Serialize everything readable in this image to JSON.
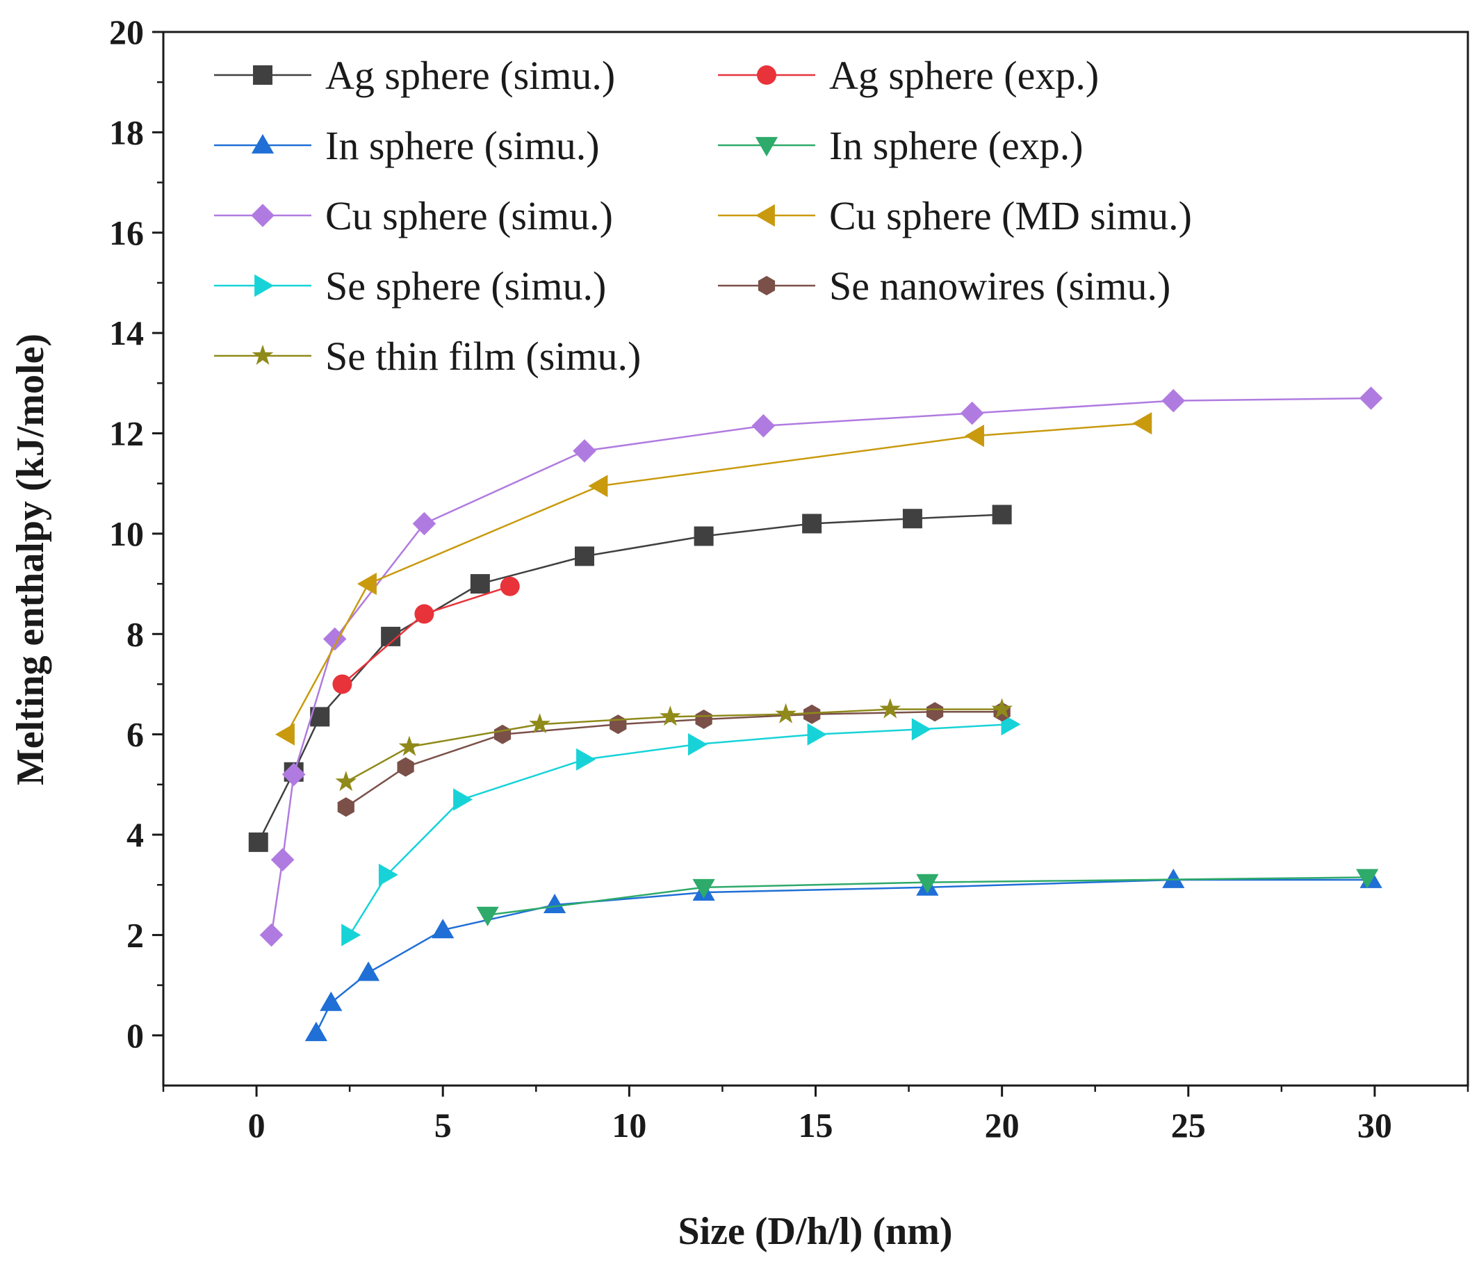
{
  "chart_data": {
    "type": "line",
    "title": "",
    "xlabel": "Size (D/h/l) (nm)",
    "ylabel": "Melting enthalpy (kJ/mole)",
    "xlim": [
      -2.5,
      32.5
    ],
    "ylim": [
      -1,
      20
    ],
    "xticks": [
      0,
      5,
      10,
      15,
      20,
      25,
      30
    ],
    "yticks": [
      0,
      2,
      4,
      6,
      8,
      10,
      12,
      14,
      16,
      18,
      20
    ],
    "legend_position": "top-left",
    "series": [
      {
        "name": "Ag sphere (simu.)",
        "color": "#404040",
        "marker": "square",
        "x": [
          0.05,
          1.0,
          1.7,
          3.6,
          6.0,
          8.8,
          12.0,
          14.9,
          17.6,
          20.0
        ],
        "y": [
          3.85,
          5.25,
          6.35,
          7.95,
          9.0,
          9.55,
          9.95,
          10.2,
          10.3,
          10.38
        ]
      },
      {
        "name": "Ag sphere (exp.)",
        "color": "#e8333a",
        "marker": "circle",
        "x": [
          2.3,
          4.5,
          6.8
        ],
        "y": [
          7.0,
          8.4,
          8.95
        ]
      },
      {
        "name": "In sphere (simu.)",
        "color": "#1f6fd6",
        "marker": "triangle-up",
        "x": [
          1.6,
          2.0,
          3.0,
          5.0,
          8.0,
          12.0,
          18.0,
          24.6,
          29.9
        ],
        "y": [
          0.05,
          0.65,
          1.25,
          2.1,
          2.6,
          2.85,
          2.95,
          3.1,
          3.1
        ]
      },
      {
        "name": "In sphere (exp.)",
        "color": "#2eaa6a",
        "marker": "triangle-down",
        "x": [
          6.2,
          12.0,
          18.0,
          29.8
        ],
        "y": [
          2.4,
          2.95,
          3.05,
          3.15
        ]
      },
      {
        "name": "Cu sphere (simu.)",
        "color": "#b07be0",
        "marker": "diamond",
        "x": [
          0.4,
          0.7,
          1.0,
          2.1,
          4.5,
          8.8,
          13.6,
          19.2,
          24.6,
          29.9
        ],
        "y": [
          2.0,
          3.5,
          5.2,
          7.9,
          10.2,
          11.65,
          12.15,
          12.4,
          12.65,
          12.7
        ]
      },
      {
        "name": "Cu sphere (MD simu.)",
        "color": "#c99a0e",
        "marker": "triangle-left",
        "x": [
          0.8,
          3.0,
          9.2,
          19.3,
          23.8
        ],
        "y": [
          6.0,
          9.0,
          10.95,
          11.95,
          12.2
        ]
      },
      {
        "name": "Se sphere (simu.)",
        "color": "#17d3d8",
        "marker": "triangle-right",
        "x": [
          2.5,
          3.5,
          5.5,
          8.8,
          11.8,
          15.0,
          17.8,
          20.2
        ],
        "y": [
          2.0,
          3.2,
          4.7,
          5.5,
          5.8,
          6.0,
          6.1,
          6.2
        ]
      },
      {
        "name": "Se nanowires (simu.)",
        "color": "#7a5048",
        "marker": "hexagon",
        "x": [
          2.4,
          4.0,
          6.6,
          9.7,
          12.0,
          14.9,
          18.2,
          20.0
        ],
        "y": [
          4.55,
          5.35,
          6.0,
          6.2,
          6.3,
          6.4,
          6.45,
          6.45
        ]
      },
      {
        "name": "Se thin film (simu.)",
        "color": "#8f8a1a",
        "marker": "star",
        "x": [
          2.4,
          4.1,
          7.6,
          11.1,
          14.2,
          17.0,
          20.0
        ],
        "y": [
          5.05,
          5.75,
          6.2,
          6.35,
          6.4,
          6.5,
          6.5
        ]
      }
    ]
  }
}
